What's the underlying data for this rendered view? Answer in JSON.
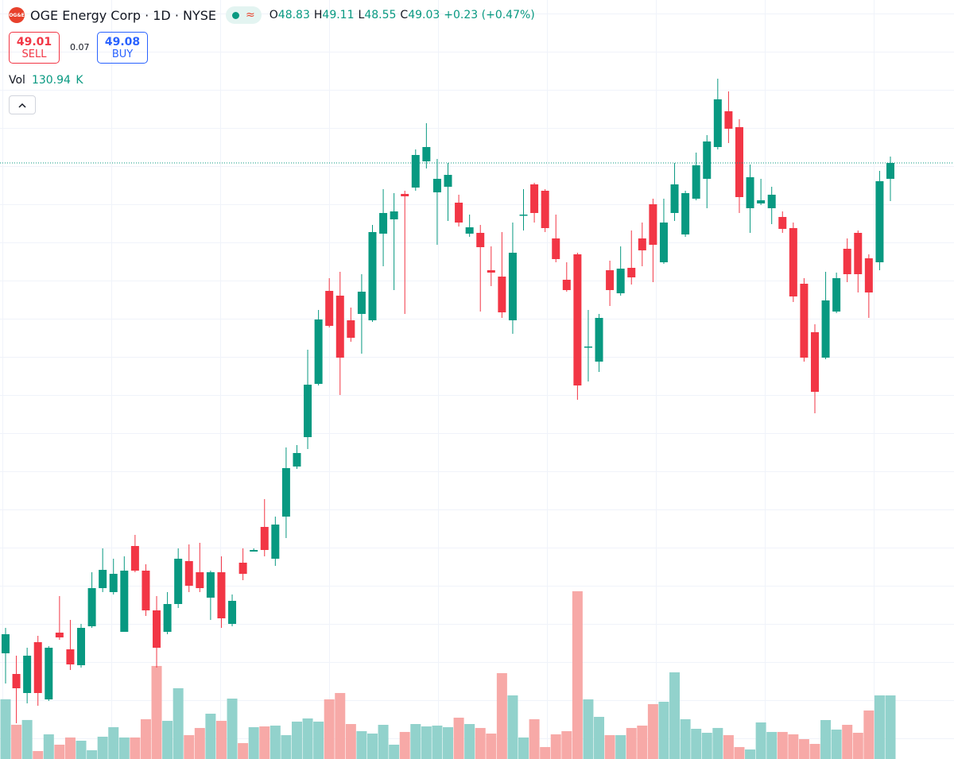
{
  "header": {
    "logo": "OG&E",
    "symbol": "OGE Energy Corp · 1D · NYSE",
    "ohlc_labels": [
      "O",
      "H",
      "L",
      "C"
    ],
    "change": "+0.23 (+0.47%)",
    "sell": {
      "price": 49.01,
      "label": "SELL"
    },
    "spread": 0.07,
    "buy": {
      "price": 49.08,
      "label": "BUY"
    },
    "volume_label": "Vol",
    "volume_unit": "K"
  },
  "chart_data": {
    "type": "candlestick",
    "open": [
      42.86,
      42.6,
      42.36,
      43.0,
      42.28,
      43.12,
      42.91,
      42.71,
      43.2,
      43.68,
      43.63,
      43.13,
      44.21,
      43.9,
      43.4,
      43.13,
      43.48,
      44.02,
      43.88,
      43.56,
      43.88,
      43.23,
      44.0,
      44.14,
      44.45,
      44.05,
      44.58,
      45.21,
      45.58,
      46.25,
      47.42,
      47.36,
      47.05,
      47.13,
      47.05,
      48.14,
      48.32,
      48.64,
      48.72,
      49.05,
      48.66,
      48.73,
      48.53,
      48.14,
      48.15,
      47.68,
      47.6,
      47.05,
      48.37,
      48.76,
      48.68,
      48.08,
      47.56,
      47.88,
      46.71,
      46.53,
      47.68,
      47.39,
      47.71,
      48.08,
      48.51,
      47.78,
      48.4,
      48.13,
      48.58,
      48.83,
      49.23,
      49.68,
      49.48,
      48.46,
      48.52,
      48.46,
      48.35,
      48.21,
      47.51,
      46.9,
      46.58,
      47.16,
      47.95,
      48.15,
      47.83,
      47.78,
      48.83
    ],
    "high": [
      43.18,
      42.83,
      42.93,
      43.08,
      42.95,
      43.58,
      43.28,
      43.23,
      43.88,
      44.18,
      44.05,
      44.08,
      44.35,
      43.98,
      43.58,
      43.63,
      44.18,
      44.23,
      44.25,
      43.9,
      44.08,
      43.6,
      44.18,
      44.18,
      44.8,
      44.58,
      45.45,
      45.48,
      46.68,
      47.18,
      47.58,
      47.66,
      47.21,
      47.63,
      48.25,
      48.7,
      48.65,
      48.68,
      49.2,
      49.53,
      49.08,
      49.03,
      48.63,
      48.38,
      48.25,
      47.98,
      48.16,
      48.28,
      48.7,
      48.78,
      48.7,
      48.38,
      47.78,
      47.9,
      47.18,
      47.13,
      47.8,
      47.98,
      48.18,
      48.28,
      48.58,
      48.58,
      49.03,
      48.68,
      49.16,
      49.38,
      50.09,
      49.93,
      49.58,
      49.01,
      48.83,
      48.73,
      48.42,
      48.28,
      47.58,
      47.0,
      47.66,
      47.65,
      48.08,
      48.18,
      47.88,
      48.93,
      49.11
    ],
    "low": [
      42.48,
      41.98,
      42.23,
      42.2,
      42.26,
      43.03,
      42.65,
      42.68,
      43.18,
      43.63,
      43.6,
      43.13,
      43.88,
      43.33,
      42.68,
      43.1,
      43.43,
      43.63,
      43.63,
      43.28,
      43.18,
      43.2,
      43.78,
      44.14,
      44.08,
      43.96,
      44.31,
      45.18,
      45.43,
      46.23,
      46.96,
      46.11,
      46.78,
      46.63,
      47.03,
      47.73,
      47.43,
      47.13,
      48.68,
      48.96,
      48.0,
      48.3,
      48.23,
      48.1,
      47.16,
      47.48,
      47.08,
      46.88,
      48.18,
      48.28,
      48.16,
      47.78,
      47.41,
      46.05,
      46.28,
      46.4,
      47.23,
      47.36,
      47.5,
      47.73,
      47.53,
      47.76,
      48.3,
      48.1,
      48.56,
      48.46,
      49.2,
      49.28,
      48.4,
      48.15,
      48.5,
      48.26,
      48.15,
      47.28,
      46.53,
      45.88,
      46.56,
      47.14,
      47.53,
      47.4,
      47.08,
      47.68,
      48.55
    ],
    "close": [
      43.1,
      42.42,
      42.83,
      42.36,
      42.93,
      43.06,
      42.72,
      43.18,
      43.68,
      43.91,
      43.86,
      43.9,
      43.9,
      43.4,
      42.93,
      43.48,
      44.05,
      43.71,
      43.68,
      43.88,
      43.3,
      43.52,
      43.86,
      44.16,
      44.16,
      44.48,
      45.19,
      45.38,
      46.24,
      47.06,
      46.98,
      46.58,
      46.83,
      47.41,
      48.16,
      48.4,
      48.42,
      48.61,
      49.13,
      49.23,
      48.83,
      48.88,
      48.28,
      48.22,
      47.97,
      47.65,
      47.15,
      47.9,
      48.38,
      48.4,
      48.21,
      47.82,
      47.43,
      46.23,
      46.72,
      47.08,
      47.43,
      47.7,
      47.59,
      47.93,
      48.0,
      48.28,
      48.76,
      48.65,
      49.0,
      49.3,
      49.83,
      49.46,
      48.6,
      48.85,
      48.56,
      48.63,
      48.2,
      47.35,
      46.58,
      46.15,
      47.3,
      47.58,
      47.63,
      47.63,
      47.4,
      48.8,
      49.03
    ],
    "volume": [
      123,
      70.5,
      80.3,
      16.4,
      50.8,
      29.5,
      44.3,
      37.7,
      18,
      45.9,
      65.5,
      44.3,
      44.3,
      81.9,
      191.6,
      78.6,
      145.7,
      49.1,
      63.9,
      93.3,
      78.6,
      124.4,
      32.7,
      65.5,
      67.1,
      68.8,
      49.1,
      77,
      83.5,
      77,
      122.8,
      135.9,
      72,
      57.3,
      52.4,
      70.4,
      29.5,
      55.7,
      72,
      67.1,
      68.8,
      65.5,
      85.1,
      72,
      63.9,
      52.4,
      176.8,
      131,
      44.3,
      81.9,
      24.6,
      50.8,
      57.3,
      345.5,
      122.8,
      86.8,
      49.1,
      49.1,
      63.9,
      68.8,
      113,
      117.9,
      178.5,
      81.9,
      62.2,
      54,
      63.9,
      49.1,
      24.6,
      19.6,
      75.3,
      55.7,
      55.7,
      50.8,
      40.9,
      31.1,
      80.2,
      60.6,
      70.4,
      54,
      99.9,
      131,
      130.94
    ],
    "ylim": [
      41.53,
      51.08
    ],
    "volume_lim": [
      0,
      1563
    ],
    "up_color": "#089981",
    "down_color": "#f23645",
    "volume_up_color": "#92d2cc",
    "volume_down_color": "#f7a9a7",
    "last_price_line": true
  }
}
